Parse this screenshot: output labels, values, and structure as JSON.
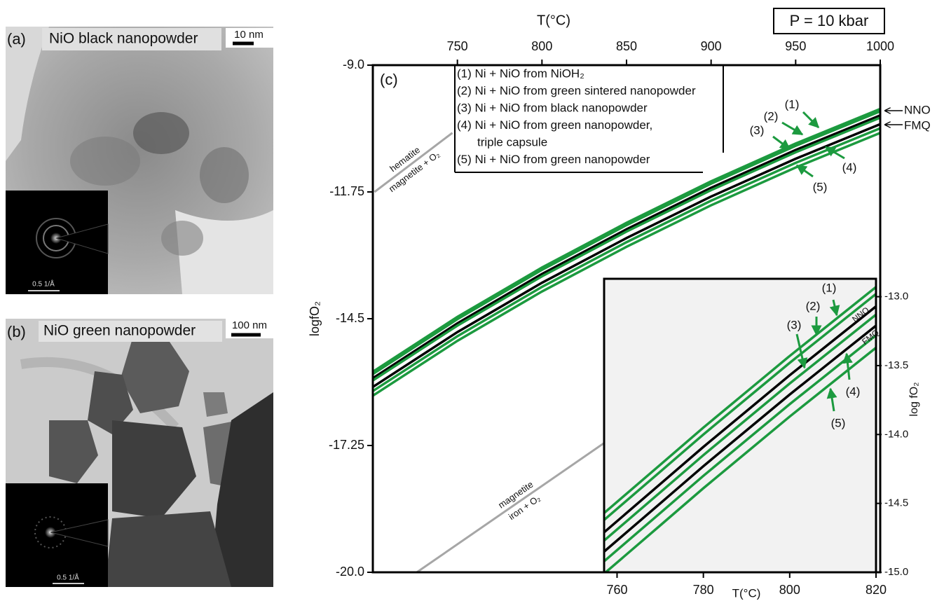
{
  "panels": [
    {
      "label": "(a)",
      "title": "NiO black nanopowder",
      "scale_bar": "10 nm",
      "diffraction_scale": "0.5 1/Å"
    },
    {
      "label": "(b)",
      "title": "NiO green nanopowder",
      "scale_bar": "100 nm",
      "diffraction_scale": "0.5 1/Å"
    }
  ],
  "chart_data": [
    {
      "type": "line",
      "panel_label": "(c)",
      "annotation": "P = 10 kbar",
      "xlabel": "T(°C)",
      "ylabel": "logfO₂",
      "x": [
        700,
        750,
        800,
        850,
        900,
        950,
        1000
      ],
      "xlim": [
        700,
        1000
      ],
      "xticks": [
        750,
        800,
        850,
        900,
        950,
        1000
      ],
      "ylim": [
        -20,
        -9
      ],
      "yticks": [
        {
          "value": -20,
          "label": "-20.0"
        },
        -17.25,
        -14.5,
        -11.75,
        {
          "value": -9,
          "label": "-9.0"
        }
      ],
      "series": [
        {
          "name": "NNO",
          "color": "#000000",
          "values": [
            -15.79,
            -14.6,
            -13.53,
            -12.56,
            -11.66,
            -10.84,
            -10.09
          ]
        },
        {
          "name": "FMQ",
          "color": "#000000",
          "values": [
            -15.98,
            -14.79,
            -13.72,
            -12.75,
            -11.85,
            -11.03,
            -10.28
          ]
        },
        {
          "name": "(1)",
          "color": "#1c9a3f",
          "values": [
            -15.65,
            -14.46,
            -13.39,
            -12.42,
            -11.52,
            -10.7,
            -9.95
          ]
        },
        {
          "name": "(2)",
          "color": "#1c9a3f",
          "values": [
            -15.7,
            -14.51,
            -13.44,
            -12.47,
            -11.57,
            -10.75,
            -10.0
          ]
        },
        {
          "name": "(3)",
          "color": "#1c9a3f",
          "values": [
            -15.84,
            -14.65,
            -13.58,
            -12.61,
            -11.71,
            -10.89,
            -10.14
          ]
        },
        {
          "name": "(4)",
          "color": "#1c9a3f",
          "values": [
            -16.07,
            -14.88,
            -13.81,
            -12.84,
            -11.94,
            -11.12,
            -10.37
          ]
        },
        {
          "name": "(5)",
          "color": "#1c9a3f",
          "values": [
            -16.17,
            -14.98,
            -13.91,
            -12.94,
            -12.04,
            -11.22,
            -10.47
          ]
        }
      ],
      "legend_lines": [
        "(1) Ni + NiO from NiOH₂",
        "(2) Ni + NiO from green sintered nanopowder",
        "(3) Ni + NiO from black nanopowder",
        "(4) Ni + NiO from green nanopowder,",
        "triple capsule",
        "(5) Ni + NiO from green nanopowder"
      ],
      "reference_lines": [
        {
          "labels": [
            "hematite",
            "magnetite + O₂"
          ],
          "color": "#a6a6a6",
          "x": [
            701,
            747
          ],
          "values": [
            -11.75,
            -10.47
          ]
        },
        {
          "labels": [
            "magnetite",
            "iron + O₂"
          ],
          "color": "#a6a6a6",
          "x": [
            726,
            837
          ],
          "values": [
            -20,
            -17.19
          ]
        }
      ]
    },
    {
      "type": "line",
      "xlabel": "T(°C)",
      "ylabel": "log fO₂",
      "x": [
        757,
        770,
        780,
        790,
        800,
        810,
        820
      ],
      "xlim": [
        757,
        820
      ],
      "xticks": [
        760,
        780,
        800,
        820
      ],
      "ylim": [
        -15,
        -12.87
      ],
      "yticks": [
        {
          "value": -15,
          "label": "-15.0"
        },
        -14.5,
        {
          "value": -14,
          "label": "-14.0"
        },
        -13.5,
        {
          "value": -13,
          "label": "-13.0"
        }
      ],
      "series": [
        {
          "name": "NNO",
          "color": "#000000",
          "values": [
            -14.71,
            -14.36,
            -14.09,
            -13.83,
            -13.57,
            -13.32,
            -13.07
          ]
        },
        {
          "name": "FMQ",
          "color": "#000000",
          "values": [
            -14.85,
            -14.5,
            -14.23,
            -13.97,
            -13.71,
            -13.46,
            -13.21
          ]
        },
        {
          "name": "(1)",
          "color": "#1c9a3f",
          "values": [
            -14.57,
            -14.22,
            -13.95,
            -13.69,
            -13.43,
            -13.18,
            -12.93
          ]
        },
        {
          "name": "(2)",
          "color": "#1c9a3f",
          "values": [
            -14.62,
            -14.27,
            -14.0,
            -13.74,
            -13.48,
            -13.23,
            -12.98
          ]
        },
        {
          "name": "(3)",
          "color": "#1c9a3f",
          "values": [
            -14.77,
            -14.42,
            -14.15,
            -13.89,
            -13.63,
            -13.38,
            -13.13
          ]
        },
        {
          "name": "(4)",
          "color": "#1c9a3f",
          "values": [
            -14.92,
            -14.57,
            -14.3,
            -14.04,
            -13.78,
            -13.53,
            -13.28
          ]
        },
        {
          "name": "(5)",
          "color": "#1c9a3f",
          "values": [
            -15.01,
            -14.66,
            -14.39,
            -14.13,
            -13.87,
            -13.62,
            -13.37
          ]
        }
      ]
    }
  ]
}
